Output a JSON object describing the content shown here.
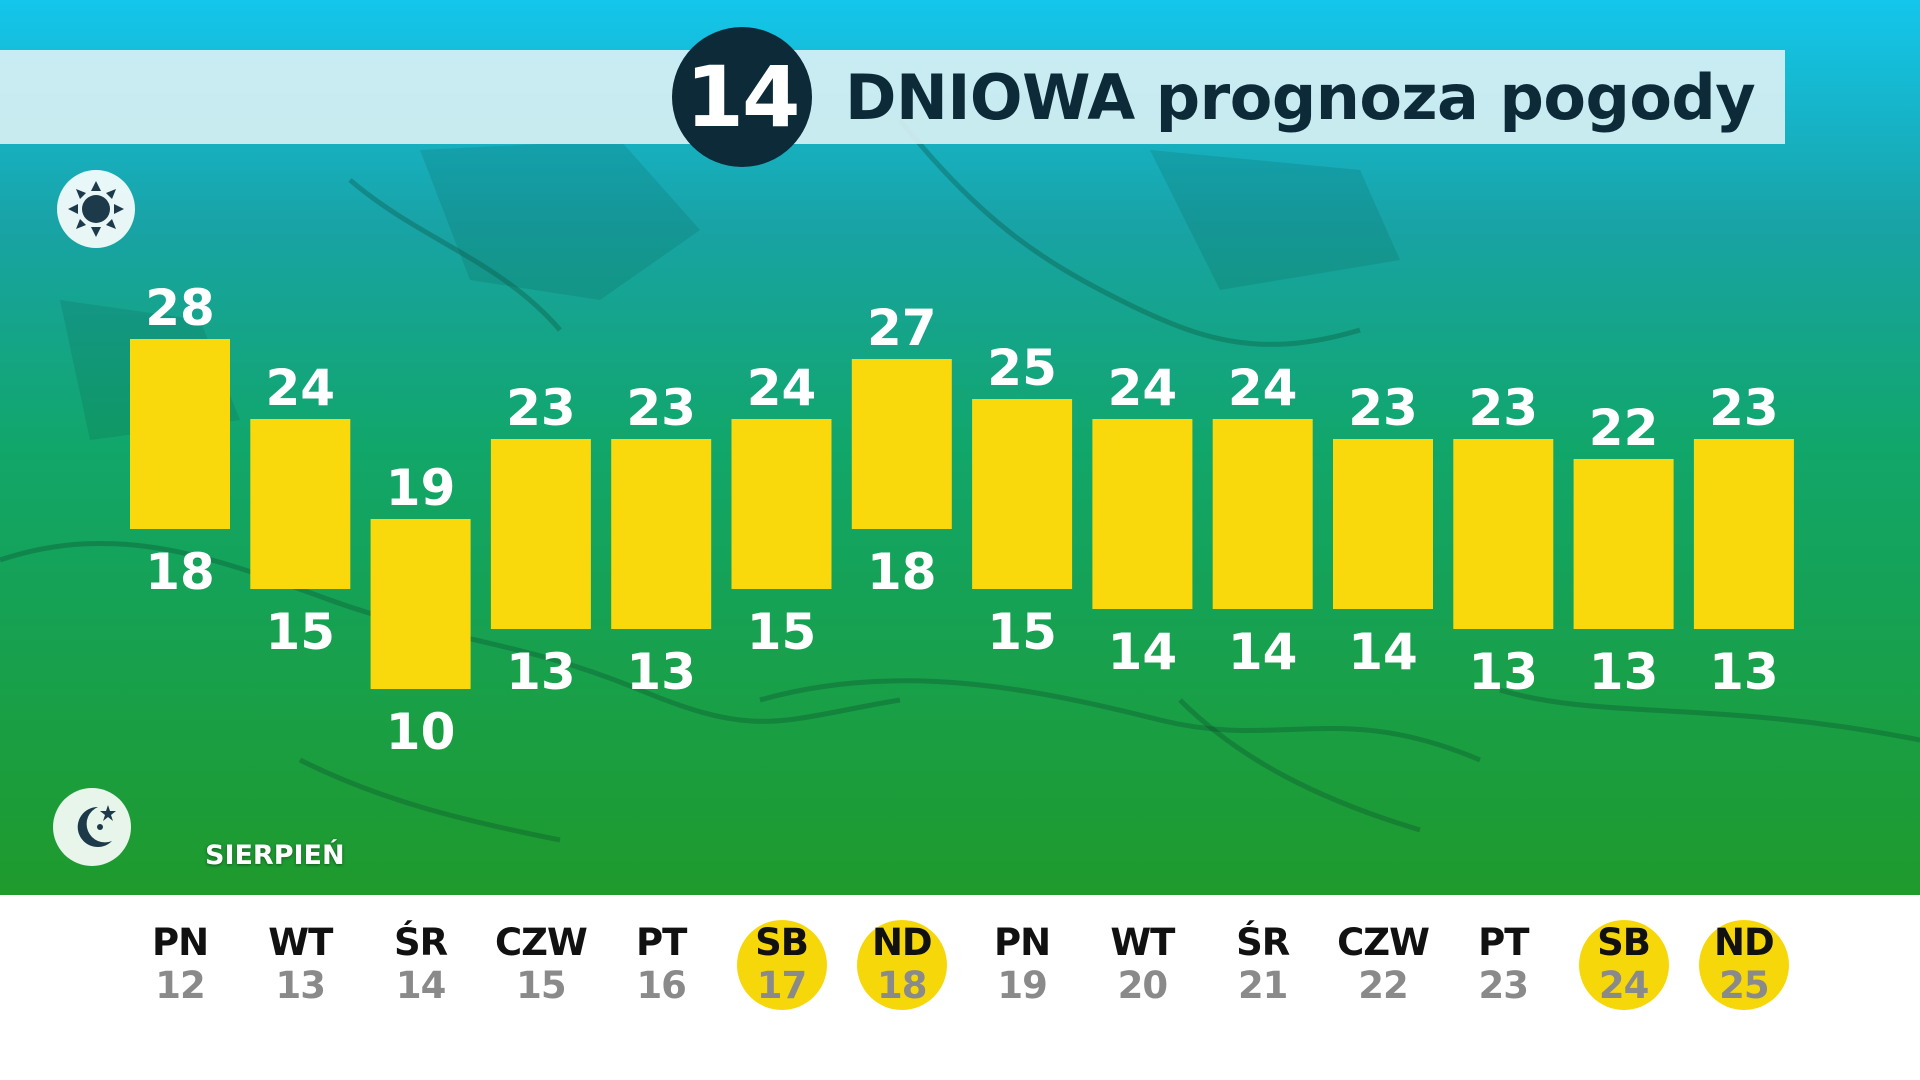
{
  "header": {
    "badge": "14",
    "title": "DNIOWA prognoza pogody"
  },
  "icons": {
    "day": "sun-icon",
    "night": "moon-icon"
  },
  "month_label": "SIERPIEŃ",
  "colors": {
    "bar": "#f9d80c",
    "weekend_highlight": "#f6d80a",
    "badge": "#0c2a38",
    "map_top": "#14c8e6",
    "map_bottom": "#1c9a2a"
  },
  "days": [
    {
      "name": "PN",
      "date": "12",
      "weekend": false
    },
    {
      "name": "WT",
      "date": "13",
      "weekend": false
    },
    {
      "name": "ŚR",
      "date": "14",
      "weekend": false
    },
    {
      "name": "CZW",
      "date": "15",
      "weekend": false
    },
    {
      "name": "PT",
      "date": "16",
      "weekend": false
    },
    {
      "name": "SB",
      "date": "17",
      "weekend": true
    },
    {
      "name": "ND",
      "date": "18",
      "weekend": true
    },
    {
      "name": "PN",
      "date": "19",
      "weekend": false
    },
    {
      "name": "WT",
      "date": "20",
      "weekend": false
    },
    {
      "name": "ŚR",
      "date": "21",
      "weekend": false
    },
    {
      "name": "CZW",
      "date": "22",
      "weekend": false
    },
    {
      "name": "PT",
      "date": "23",
      "weekend": false
    },
    {
      "name": "SB",
      "date": "24",
      "weekend": true
    },
    {
      "name": "ND",
      "date": "25",
      "weekend": true
    }
  ],
  "chart_data": {
    "type": "bar",
    "title": "14 DNIOWA prognoza pogody",
    "categories": [
      "PN 12",
      "WT 13",
      "ŚR 14",
      "CZW 15",
      "PT 16",
      "SB 17",
      "ND 18",
      "PN 19",
      "WT 20",
      "ŚR 21",
      "CZW 22",
      "PT 23",
      "SB 24",
      "ND 25"
    ],
    "series": [
      {
        "name": "max",
        "values": [
          28,
          24,
          19,
          23,
          23,
          24,
          27,
          25,
          24,
          24,
          23,
          23,
          22,
          23
        ]
      },
      {
        "name": "min",
        "values": [
          18,
          15,
          10,
          13,
          13,
          15,
          18,
          15,
          14,
          14,
          14,
          13,
          13,
          13
        ]
      }
    ],
    "ylim": [
      8,
      30
    ],
    "grid": false,
    "legend": "none"
  }
}
